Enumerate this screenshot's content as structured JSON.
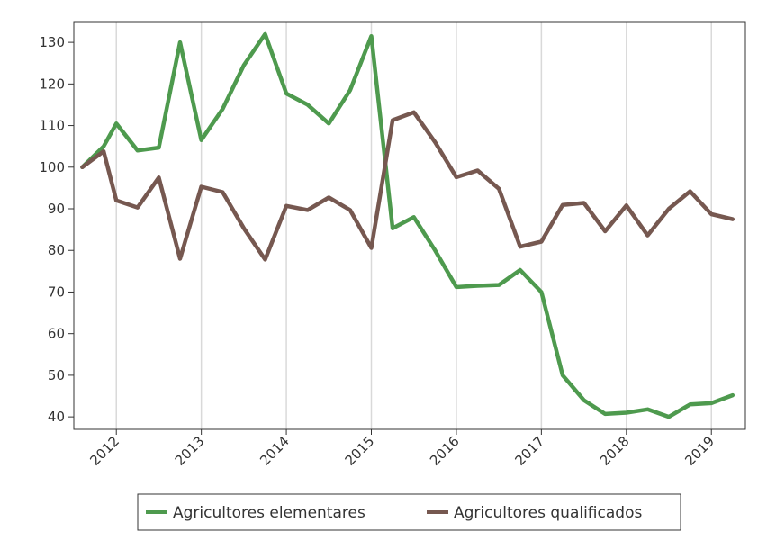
{
  "chart_data": {
    "type": "line",
    "title": "",
    "xlabel": "",
    "ylabel": "",
    "x_ticks": [
      "2012",
      "2013",
      "2014",
      "2015",
      "2016",
      "2017",
      "2018",
      "2019"
    ],
    "y_ticks": [
      "40",
      "50",
      "60",
      "70",
      "80",
      "90",
      "100",
      "110",
      "120",
      "130"
    ],
    "xlim": [
      2011.5,
      2019.4
    ],
    "ylim": [
      37,
      135
    ],
    "grid": "vertical",
    "legend_position": "bottom",
    "x": [
      2011.6,
      2011.85,
      2012.0,
      2012.25,
      2012.5,
      2012.75,
      2013.0,
      2013.25,
      2013.5,
      2013.75,
      2014.0,
      2014.25,
      2014.5,
      2014.75,
      2015.0,
      2015.25,
      2015.5,
      2015.75,
      2016.0,
      2016.25,
      2016.5,
      2016.75,
      2017.0,
      2017.25,
      2017.5,
      2017.75,
      2018.0,
      2018.25,
      2018.5,
      2018.75,
      2019.0,
      2019.25
    ],
    "series": [
      {
        "name": "Agricultores elementares",
        "color": "#4e9a4e",
        "values": [
          100,
          105,
          110.5,
          104,
          104.7,
          130,
          106.5,
          114,
          124.5,
          132,
          117.7,
          115,
          110.5,
          118.5,
          131.5,
          85.3,
          88,
          80,
          71.2,
          71.5,
          71.7,
          75.3,
          70,
          50,
          44,
          40.7,
          41,
          41.8,
          40,
          43,
          43.3,
          45.2
        ]
      },
      {
        "name": "Agricultores qualificados",
        "color": "#765850",
        "values": [
          100,
          103.8,
          92,
          90.3,
          97.5,
          78,
          95.3,
          94,
          85.3,
          77.8,
          90.7,
          89.7,
          92.7,
          89.7,
          80.6,
          111.3,
          113.2,
          106,
          97.6,
          99.2,
          94.8,
          80.9,
          82.1,
          90.9,
          91.4,
          84.6,
          90.8,
          83.6,
          90,
          94.2,
          88.7,
          87.5
        ]
      }
    ]
  }
}
